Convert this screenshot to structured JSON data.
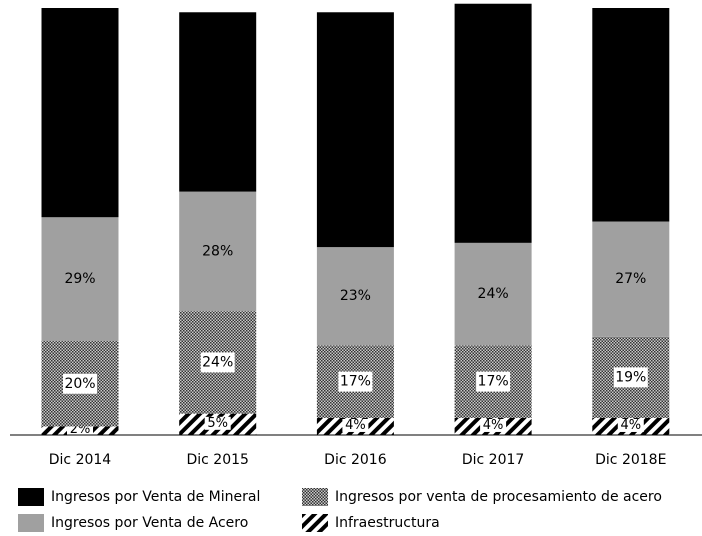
{
  "chart_data": {
    "type": "stacked_bar",
    "categories": [
      "Dic 2014",
      "Dic 2015",
      "Dic 2016",
      "Dic 2017",
      "Dic 2018E"
    ],
    "series": [
      {
        "name": "Infraestructura",
        "color": "#000000",
        "pattern": "stripes",
        "values": [
          2,
          5,
          4,
          4,
          4
        ]
      },
      {
        "name": "Ingresos por venta de procesamiento de acero",
        "color": "#555555",
        "pattern": "crosshatch",
        "values": [
          20,
          24,
          17,
          17,
          19
        ]
      },
      {
        "name": "Ingresos por Venta de Acero",
        "color": "#a0a0a0",
        "values": [
          29,
          28,
          23,
          24,
          27
        ]
      },
      {
        "name": "Ingresos por Venta de Mineral",
        "color": "#000000",
        "values": [
          49,
          42,
          55,
          56,
          50
        ]
      }
    ],
    "value_labels": [
      [
        "2%",
        "5%",
        "4%",
        "4%",
        "4%"
      ],
      [
        "20%",
        "24%",
        "17%",
        "17%",
        "19%"
      ],
      [
        "29%",
        "28%",
        "23%",
        "24%",
        "27%"
      ],
      [
        "49%",
        "42%",
        "55%",
        "56%",
        "50%"
      ]
    ],
    "ylim": [
      0,
      100
    ],
    "legend": "bottom"
  }
}
